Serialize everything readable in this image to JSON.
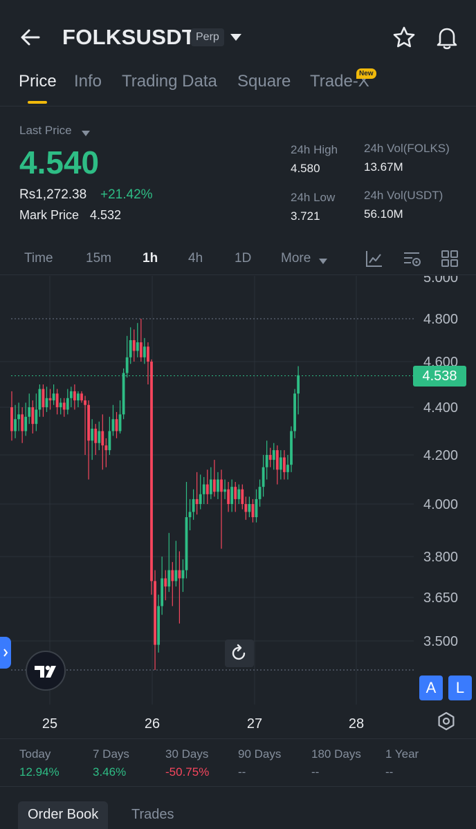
{
  "header": {
    "symbol": "FOLKSUSDT",
    "badge": "Perp",
    "icons": [
      "back-arrow-icon",
      "caret-down-icon",
      "star-icon",
      "bell-icon"
    ]
  },
  "tabs": [
    {
      "label": "Price",
      "active": true
    },
    {
      "label": "Info"
    },
    {
      "label": "Trading Data"
    },
    {
      "label": "Square"
    },
    {
      "label": "Trade-X",
      "badge": "New"
    }
  ],
  "ticker": {
    "last_price_label": "Last Price",
    "last_price": "4.540",
    "fiat_price": "Rs1,272.38",
    "change_pct": "+21.42%",
    "mark_label": "Mark Price",
    "mark_price": "4.532",
    "high_label": "24h High",
    "high": "4.580",
    "low_label": "24h Low",
    "low": "3.721",
    "vol_base_label": "24h Vol(FOLKS)",
    "vol_base": "13.67M",
    "vol_quote_label": "24h Vol(USDT)",
    "vol_quote": "56.10M"
  },
  "timeframes": {
    "items": [
      "Time",
      "15m",
      "1h",
      "4h",
      "1D",
      "More"
    ],
    "active": "1h",
    "icons": [
      "indicator-icon",
      "chart-settings-icon",
      "grid-layout-icon"
    ]
  },
  "chart": {
    "current_price_label": "4.538",
    "a_button": "A",
    "l_button": "L",
    "icons": [
      "tradingview-logo-icon",
      "reset-icon",
      "side-panel-tab-icon",
      "settings-hex-icon"
    ]
  },
  "chart_data": {
    "type": "candlestick",
    "interval": "1h",
    "ylim": [
      3.35,
      5.0
    ],
    "y_ticks": [
      "5.000",
      "4.800",
      "4.600",
      "4.400",
      "4.200",
      "4.000",
      "3.800",
      "3.650",
      "3.500"
    ],
    "x_ticks": [
      "25",
      "26",
      "27",
      "28"
    ],
    "current_price": 4.538,
    "dotted_levels": [
      4.8,
      3.35
    ],
    "candles": [
      [
        4.4,
        4.3,
        4.47,
        4.26
      ],
      [
        4.3,
        4.35,
        4.41,
        4.27
      ],
      [
        4.35,
        4.37,
        4.42,
        4.3
      ],
      [
        4.37,
        4.3,
        4.4,
        4.25
      ],
      [
        4.3,
        4.36,
        4.42,
        4.28
      ],
      [
        4.36,
        4.4,
        4.46,
        4.33
      ],
      [
        4.4,
        4.33,
        4.43,
        4.29
      ],
      [
        4.33,
        4.39,
        4.46,
        4.3
      ],
      [
        4.39,
        4.48,
        4.5,
        4.36
      ],
      [
        4.48,
        4.4,
        4.5,
        4.36
      ],
      [
        4.4,
        4.44,
        4.49,
        4.38
      ],
      [
        4.44,
        4.43,
        4.48,
        4.39
      ],
      [
        4.43,
        4.46,
        4.5,
        4.41
      ],
      [
        4.46,
        4.4,
        4.48,
        4.37
      ],
      [
        4.4,
        4.42,
        4.44,
        4.37
      ],
      [
        4.42,
        4.39,
        4.44,
        4.36
      ],
      [
        4.39,
        4.44,
        4.48,
        4.37
      ],
      [
        4.44,
        4.47,
        4.49,
        4.4
      ],
      [
        4.47,
        4.43,
        4.5,
        4.39
      ],
      [
        4.43,
        4.46,
        4.47,
        4.4
      ],
      [
        4.46,
        4.43,
        4.47,
        4.42
      ],
      [
        4.43,
        4.41,
        4.45,
        4.2
      ],
      [
        4.41,
        4.26,
        4.43,
        4.1
      ],
      [
        4.26,
        4.31,
        4.35,
        4.18
      ],
      [
        4.31,
        4.25,
        4.33,
        4.2
      ],
      [
        4.25,
        4.3,
        4.34,
        4.22
      ],
      [
        4.3,
        4.24,
        4.37,
        4.14
      ],
      [
        4.24,
        4.22,
        4.27,
        4.15
      ],
      [
        4.22,
        4.3,
        4.36,
        4.2
      ],
      [
        4.3,
        4.35,
        4.41,
        4.28
      ],
      [
        4.35,
        4.3,
        4.38,
        4.27
      ],
      [
        4.3,
        4.37,
        4.43,
        4.29
      ],
      [
        4.37,
        4.55,
        4.57,
        4.35
      ],
      [
        4.55,
        4.62,
        4.72,
        4.53
      ],
      [
        4.62,
        4.7,
        4.76,
        4.59
      ],
      [
        4.7,
        4.65,
        4.75,
        4.6
      ],
      [
        4.65,
        4.69,
        4.78,
        4.62
      ],
      [
        4.69,
        4.62,
        4.8,
        4.6
      ],
      [
        4.62,
        4.67,
        4.71,
        4.59
      ],
      [
        4.67,
        4.6,
        4.69,
        4.5
      ],
      [
        4.6,
        3.71,
        4.61,
        3.66
      ],
      [
        3.71,
        3.48,
        3.75,
        3.35
      ],
      [
        3.48,
        3.62,
        3.66,
        3.44
      ],
      [
        3.62,
        3.72,
        3.8,
        3.59
      ],
      [
        3.72,
        3.69,
        3.75,
        3.64
      ],
      [
        3.69,
        3.75,
        3.89,
        3.67
      ],
      [
        3.75,
        3.71,
        3.78,
        3.62
      ],
      [
        3.71,
        3.75,
        3.86,
        3.69
      ],
      [
        3.75,
        3.72,
        3.82,
        3.56
      ],
      [
        3.72,
        3.75,
        3.79,
        3.67
      ],
      [
        3.75,
        3.95,
        4.09,
        3.72
      ],
      [
        3.95,
        3.97,
        4.02,
        3.9
      ],
      [
        3.97,
        4.02,
        4.06,
        3.94
      ],
      [
        4.02,
        4.0,
        4.13,
        3.96
      ],
      [
        4.0,
        4.04,
        4.12,
        3.98
      ],
      [
        4.04,
        4.08,
        4.11,
        4.0
      ],
      [
        4.08,
        4.04,
        4.14,
        4.0
      ],
      [
        4.04,
        4.1,
        4.15,
        4.02
      ],
      [
        4.1,
        4.05,
        4.18,
        4.03
      ],
      [
        4.05,
        4.1,
        4.13,
        4.02
      ],
      [
        4.1,
        4.05,
        4.14,
        3.83
      ],
      [
        4.05,
        4.06,
        4.1,
        4.02
      ],
      [
        4.06,
        4.0,
        4.09,
        3.97
      ],
      [
        4.0,
        4.07,
        4.1,
        3.97
      ],
      [
        4.07,
        4.02,
        4.09,
        3.97
      ],
      [
        4.02,
        4.06,
        4.08,
        4.0
      ],
      [
        4.06,
        4.0,
        4.08,
        3.98
      ],
      [
        4.0,
        3.97,
        4.03,
        3.94
      ],
      [
        3.97,
        4.0,
        4.03,
        3.95
      ],
      [
        4.0,
        3.95,
        4.02,
        3.93
      ],
      [
        3.95,
        4.02,
        4.06,
        3.93
      ],
      [
        4.02,
        4.07,
        4.1,
        3.99
      ],
      [
        4.07,
        4.15,
        4.2,
        4.03
      ],
      [
        4.15,
        4.2,
        4.26,
        4.1
      ],
      [
        4.2,
        4.18,
        4.23,
        4.15
      ],
      [
        4.18,
        4.22,
        4.25,
        4.14
      ],
      [
        4.22,
        4.14,
        4.24,
        4.08
      ],
      [
        4.14,
        4.19,
        4.22,
        4.1
      ],
      [
        4.19,
        4.13,
        4.22,
        4.1
      ],
      [
        4.13,
        4.16,
        4.2,
        4.1
      ],
      [
        4.16,
        4.3,
        4.32,
        4.13
      ],
      [
        4.3,
        4.46,
        4.48,
        4.27
      ],
      [
        4.46,
        4.54,
        4.58,
        4.37
      ]
    ]
  },
  "performance": [
    {
      "label": "Today",
      "value": "12.94%",
      "tone": "green"
    },
    {
      "label": "7 Days",
      "value": "3.46%",
      "tone": "green"
    },
    {
      "label": "30 Days",
      "value": "-50.75%",
      "tone": "red"
    },
    {
      "label": "90 Days",
      "value": "--",
      "tone": "muted"
    },
    {
      "label": "180 Days",
      "value": "--",
      "tone": "muted"
    },
    {
      "label": "1 Year",
      "value": "--",
      "tone": "muted"
    }
  ],
  "bottom_tabs": {
    "order_book": "Order Book",
    "trades": "Trades"
  }
}
